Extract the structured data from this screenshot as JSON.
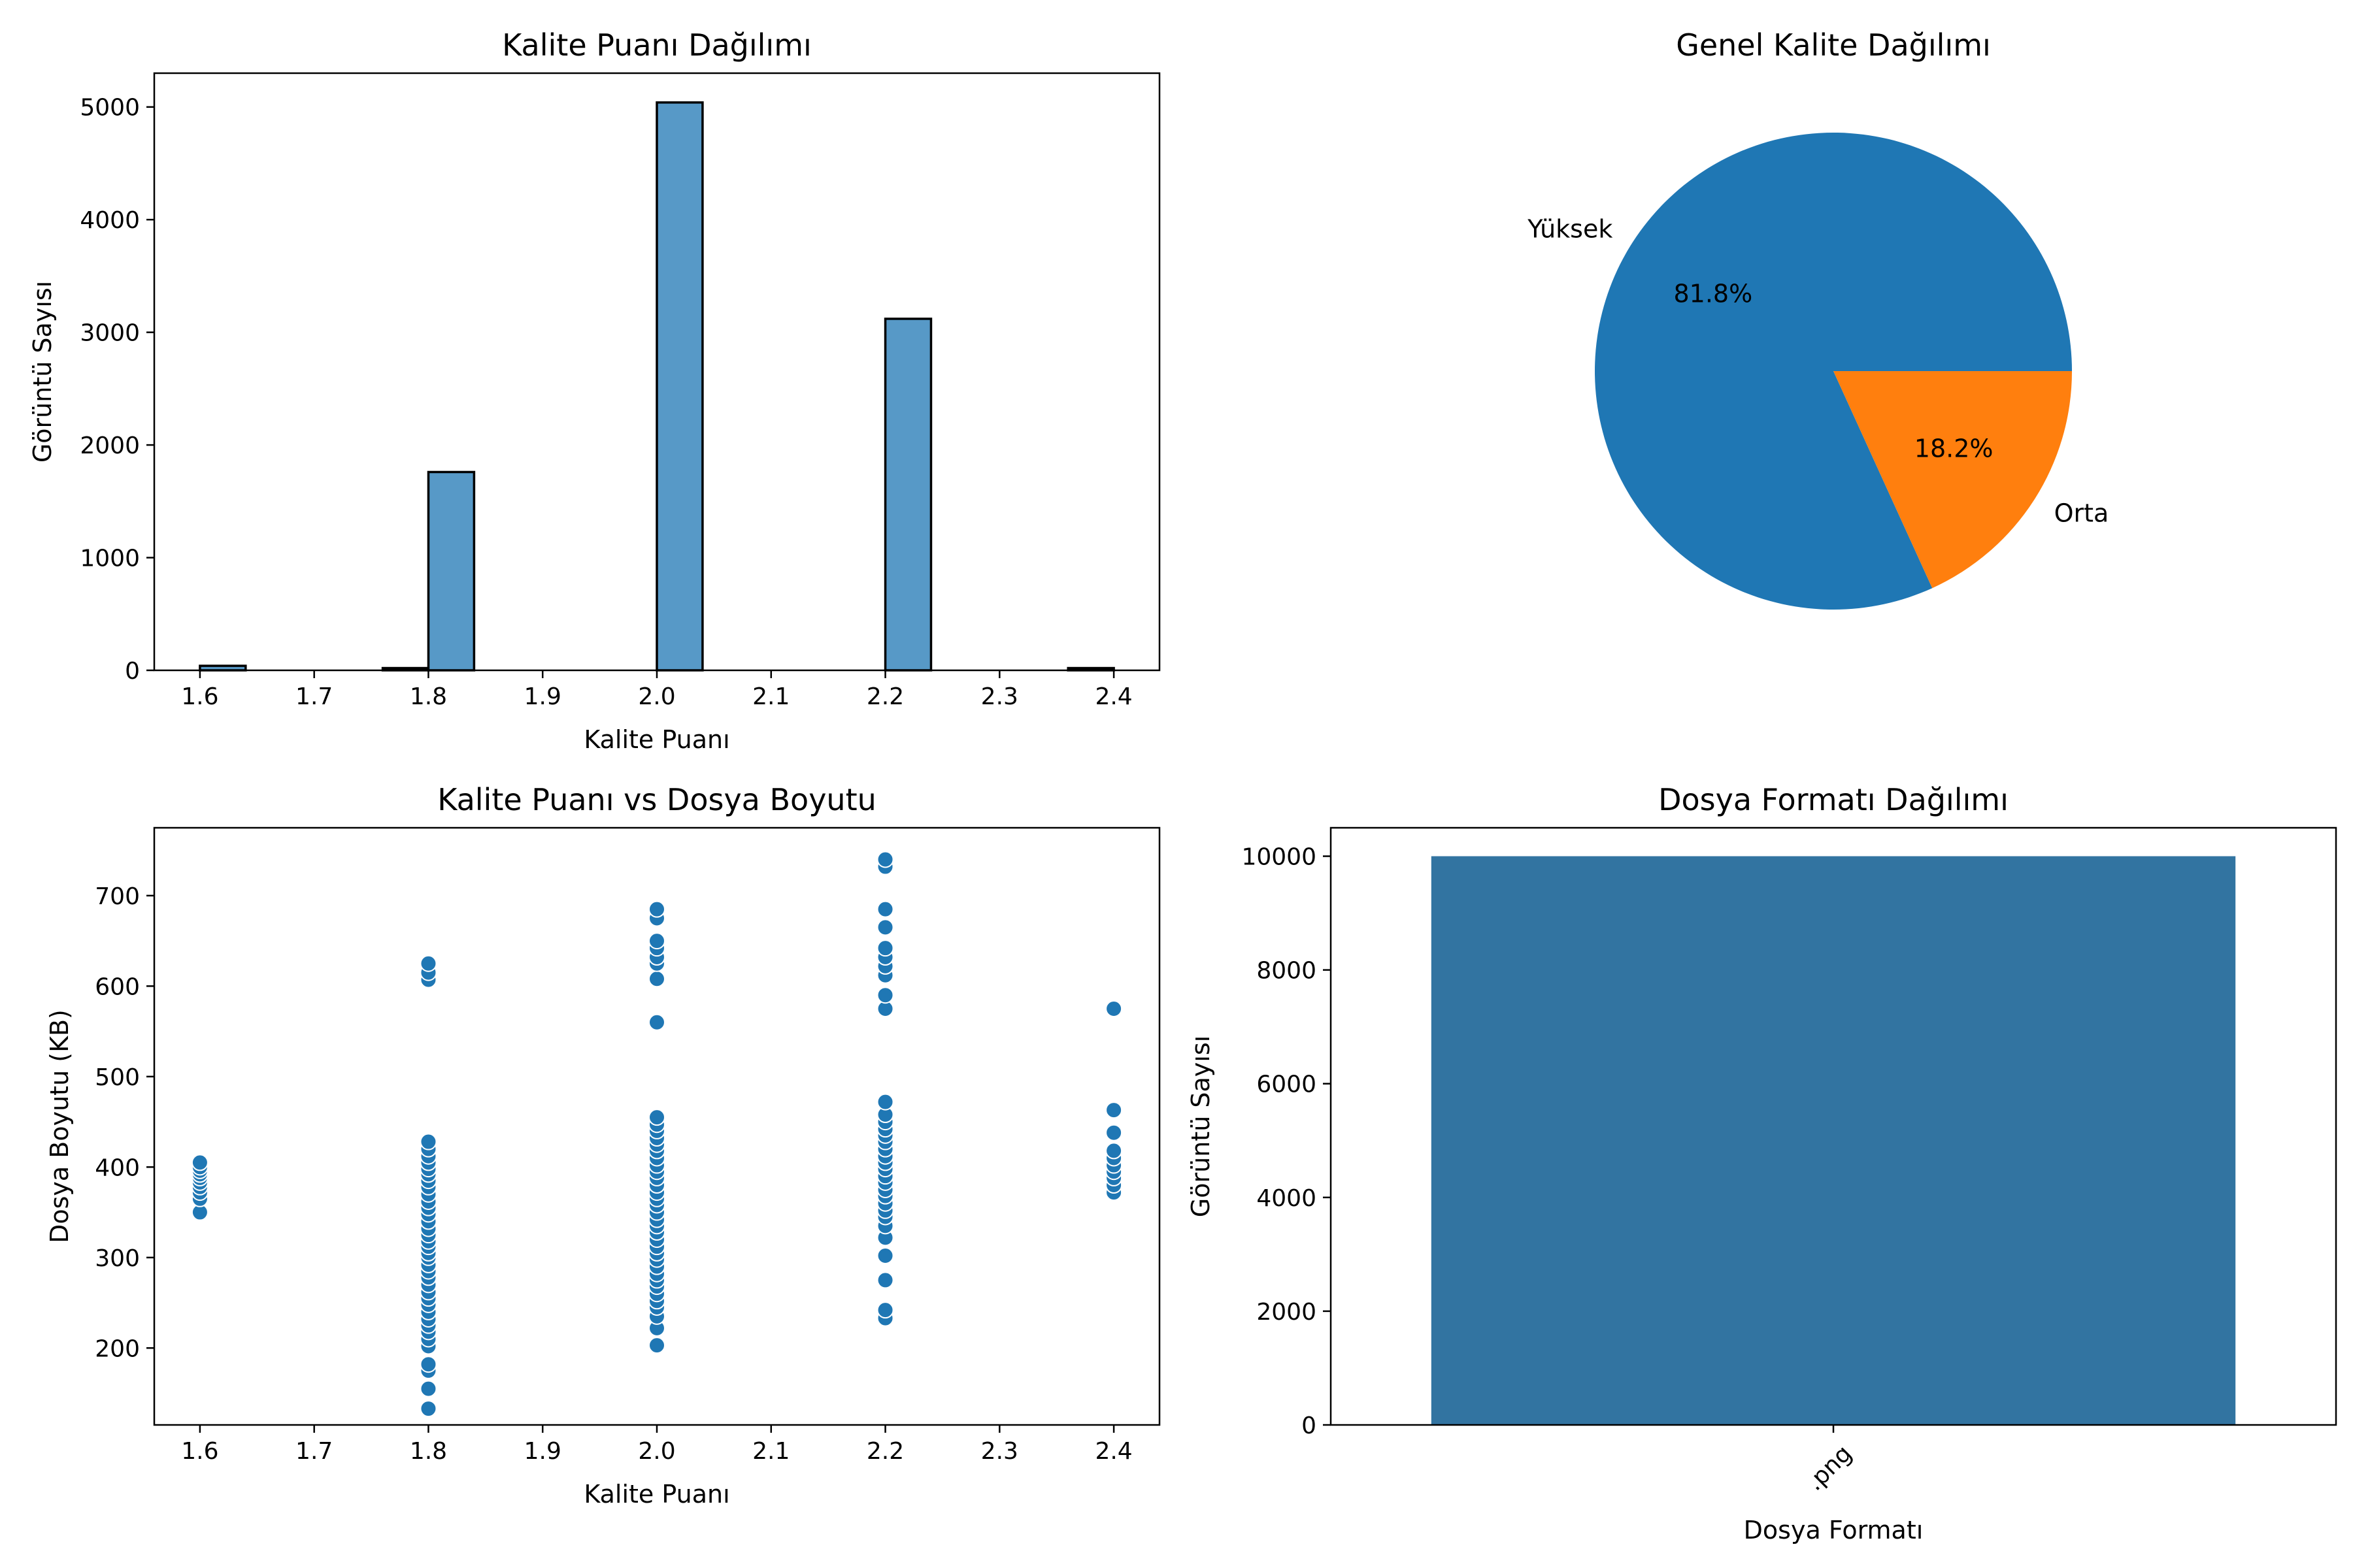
{
  "chart_data": [
    {
      "type": "bar",
      "title": "Kalite Puanı Dağılımı",
      "xlabel": "Kalite Puanı",
      "ylabel": "Görüntü Sayısı",
      "xlim": [
        1.56,
        2.44
      ],
      "ylim": [
        0,
        5300
      ],
      "xticks": [
        "1.6",
        "1.7",
        "1.8",
        "1.9",
        "2.0",
        "2.1",
        "2.2",
        "2.3",
        "2.4"
      ],
      "yticks": [
        "0",
        "1000",
        "2000",
        "3000",
        "4000",
        "5000"
      ],
      "bin_start": 1.6,
      "bin_width": 0.04,
      "values": [
        40,
        0,
        0,
        0,
        20,
        1760,
        0,
        0,
        0,
        0,
        5040,
        0,
        0,
        0,
        0,
        3120,
        0,
        0,
        0,
        20
      ],
      "color": "#5799c7",
      "edge_color": "#000000",
      "grid": false
    },
    {
      "type": "pie",
      "title": "Genel Kalite Dağılımı",
      "labels": [
        "Yüksek",
        "Orta"
      ],
      "values": [
        81.8,
        18.2
      ],
      "autopct": [
        "81.8%",
        "18.2%"
      ],
      "colors": [
        "#1f77b4",
        "#ff7f0e"
      ]
    },
    {
      "type": "scatter",
      "title": "Kalite Puanı vs Dosya Boyutu",
      "xlabel": "Kalite Puanı",
      "ylabel": "Dosya Boyutu (KB)",
      "xlim": [
        1.56,
        2.44
      ],
      "ylim": [
        115,
        775
      ],
      "xticks": [
        "1.6",
        "1.7",
        "1.8",
        "1.9",
        "2.0",
        "2.1",
        "2.2",
        "2.3",
        "2.4"
      ],
      "yticks": [
        "200",
        "300",
        "400",
        "500",
        "600",
        "700"
      ],
      "color": "#1f77b4",
      "grid": false,
      "series": [
        {
          "x": 1.6,
          "y": [
            350,
            365,
            372,
            378,
            383,
            388,
            392,
            396,
            400,
            405
          ]
        },
        {
          "x": 1.8,
          "y": [
            133,
            155,
            175,
            182,
            202,
            210,
            218,
            225,
            232,
            240,
            248,
            255,
            262,
            270,
            278,
            285,
            292,
            300,
            305,
            312,
            318,
            325,
            332,
            340,
            348,
            355,
            362,
            370,
            378,
            385,
            392,
            398,
            405,
            412,
            420,
            428,
            607,
            615,
            625
          ]
        },
        {
          "x": 2.0,
          "y": [
            203,
            222,
            235,
            245,
            252,
            260,
            268,
            275,
            282,
            290,
            298,
            305,
            312,
            320,
            328,
            335,
            342,
            350,
            358,
            365,
            372,
            380,
            388,
            395,
            402,
            410,
            418,
            425,
            432,
            440,
            447,
            455,
            560,
            608,
            625,
            632,
            642,
            650,
            675,
            685
          ]
        },
        {
          "x": 2.2,
          "y": [
            233,
            242,
            275,
            302,
            322,
            335,
            345,
            352,
            360,
            368,
            375,
            383,
            390,
            398,
            405,
            412,
            420,
            428,
            435,
            442,
            450,
            458,
            472,
            575,
            590,
            612,
            622,
            632,
            642,
            665,
            685,
            732,
            740
          ]
        },
        {
          "x": 2.4,
          "y": [
            372,
            380,
            388,
            395,
            402,
            410,
            418,
            438,
            463,
            575
          ]
        }
      ]
    },
    {
      "type": "bar",
      "title": "Dosya Formatı Dağılımı",
      "xlabel": "Dosya Formatı",
      "ylabel": "Görüntü Sayısı",
      "categories": [
        ".png"
      ],
      "values": [
        10000
      ],
      "ylim": [
        0,
        10500
      ],
      "yticks": [
        "0",
        "2000",
        "4000",
        "6000",
        "8000",
        "10000"
      ],
      "color": "#3274a1",
      "xtick_rotation": 45,
      "grid": false
    }
  ]
}
